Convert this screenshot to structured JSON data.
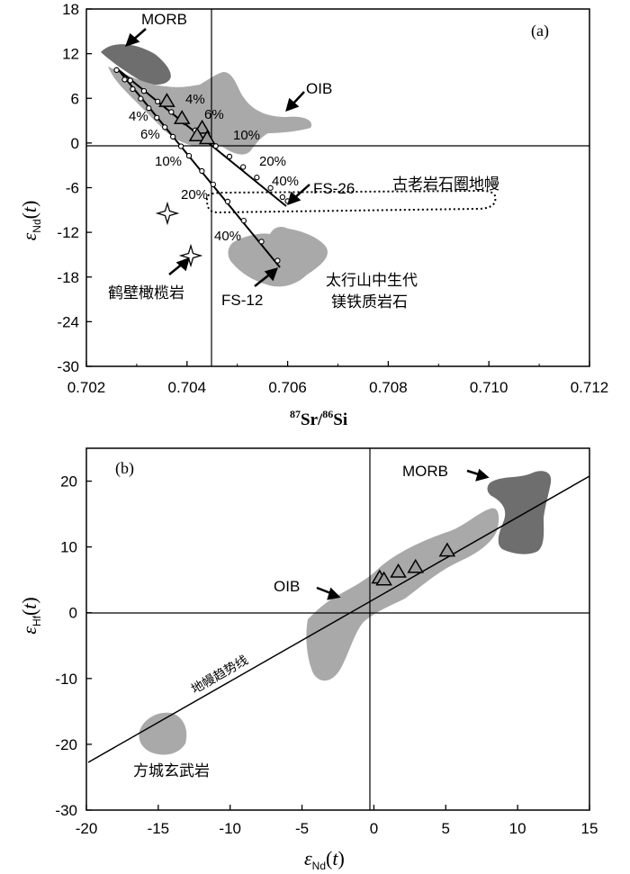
{
  "chart_data": [
    {
      "panel": "(a)",
      "type": "scatter",
      "xlabel": "87Sr/86Si",
      "ylabel": "εNd(t)",
      "xlim": [
        0.702,
        0.712
      ],
      "ylim": [
        -30,
        18
      ],
      "xticks": [
        "0.702",
        "0.704",
        "0.706",
        "0.708",
        "0.710",
        "0.712"
      ],
      "yticks": [
        "18",
        "12",
        "6",
        "0",
        "-6",
        "-12",
        "-18",
        "-24",
        "-30"
      ],
      "ref_lines": {
        "x": 0.70445,
        "y": 0
      },
      "regions": [
        {
          "name": "MORB",
          "label": "MORB"
        },
        {
          "name": "OIB",
          "label": "OIB"
        },
        {
          "name": "taihangshan-mesozoic-mafic",
          "label": "太行山中生代",
          "label2": "镁铁质岩石"
        },
        {
          "name": "ancient-lithospheric-mantle",
          "label": "古老岩石圈地幔"
        }
      ],
      "mixing_lines": [
        {
          "name": "FS-26",
          "start": [
            0.7026,
            9.8
          ],
          "end": [
            0.706,
            -7.8
          ],
          "ticks": [
            "4%",
            "6%",
            "10%",
            "20%",
            "40%"
          ]
        },
        {
          "name": "FS-12",
          "start": [
            0.7026,
            9.8
          ],
          "end": [
            0.7058,
            -15.8
          ],
          "ticks": [
            "4%",
            "6%",
            "10%",
            "20%",
            "40%"
          ]
        }
      ],
      "triangles": [
        [
          0.7036,
          5.6
        ],
        [
          0.7039,
          3.3
        ],
        [
          0.7043,
          2.0
        ],
        [
          0.7042,
          1.0
        ],
        [
          0.7044,
          0.6
        ]
      ],
      "stars": [
        [
          0.7036,
          -8.8
        ],
        [
          0.704,
          -14.3
        ]
      ],
      "annotations": [
        "FS-26",
        "FS-12",
        "鹤壁橄榄岩",
        "(a)"
      ]
    },
    {
      "panel": "(b)",
      "type": "scatter",
      "xlabel": "εNd(t)",
      "ylabel": "εHf(t)",
      "xlim": [
        -20,
        15
      ],
      "ylim": [
        -30,
        25
      ],
      "xticks": [
        "-20",
        "-15",
        "-10",
        "-5",
        "0",
        "5",
        "10",
        "15"
      ],
      "yticks": [
        "20",
        "10",
        "0",
        "-10",
        "-20",
        "-30"
      ],
      "ref_lines": {
        "x": 0,
        "y": 0
      },
      "trend_line": {
        "label": "地幔趋势线",
        "start": [
          -20,
          -23
        ],
        "end": [
          15,
          20.5
        ]
      },
      "regions": [
        {
          "name": "MORB",
          "label": "MORB"
        },
        {
          "name": "OIB",
          "label": "OIB"
        },
        {
          "name": "fangcheng-basalt",
          "label": "方城玄武岩"
        }
      ],
      "triangles": [
        [
          0.4,
          5.3
        ],
        [
          0.7,
          5.0
        ],
        [
          1.7,
          6.2
        ],
        [
          2.9,
          6.9
        ],
        [
          5.1,
          9.4
        ]
      ],
      "annotations": [
        "(b)"
      ]
    }
  ]
}
